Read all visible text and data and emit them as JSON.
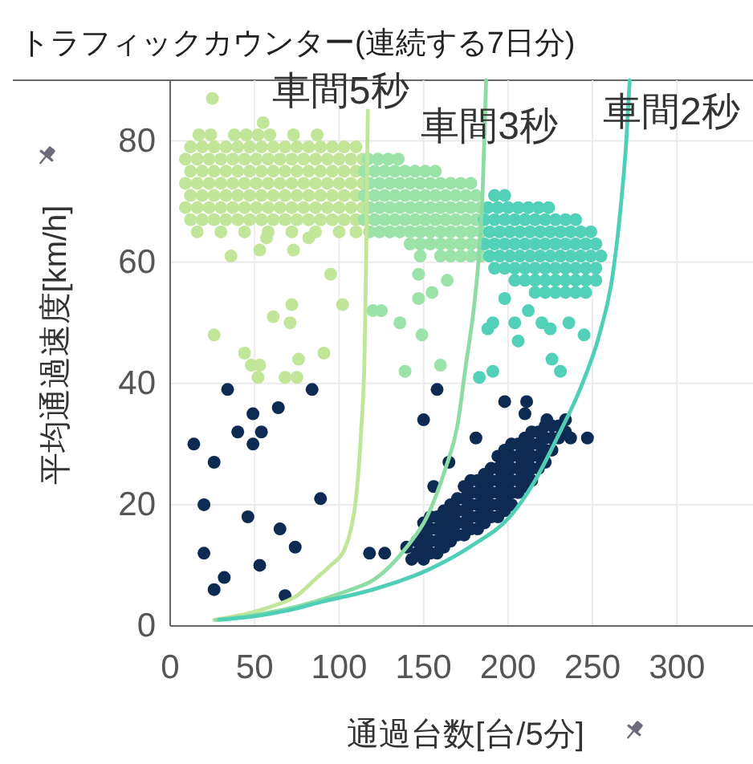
{
  "chart_data": {
    "type": "scatter",
    "title": "トラフィックカウンター(連続する7日分)",
    "xlabel": "通過台数[台/5分]",
    "ylabel": "平均通過速度[km/h]",
    "xlim": [
      0,
      345
    ],
    "ylim": [
      0,
      90
    ],
    "xticks": [
      0,
      50,
      100,
      150,
      200,
      250,
      300
    ],
    "yticks": [
      0,
      20,
      40,
      60,
      80
    ],
    "grid": true,
    "series": [
      {
        "color": "#c2e699",
        "x": [
          17,
          24,
          38,
          45,
          52,
          59,
          73,
          87,
          12,
          19,
          26,
          33,
          40,
          47,
          54,
          61,
          68,
          75,
          82,
          89,
          96,
          103,
          110,
          9,
          16,
          23,
          30,
          37,
          44,
          51,
          58,
          65,
          72,
          79,
          86,
          93,
          100,
          107,
          114,
          12,
          19,
          26,
          33,
          40,
          47,
          54,
          61,
          68,
          75,
          82,
          89,
          96,
          103,
          110,
          9,
          16,
          23,
          30,
          37,
          44,
          51,
          58,
          65,
          72,
          79,
          86,
          93,
          100,
          107,
          114,
          12,
          19,
          26,
          33,
          40,
          47,
          54,
          61,
          68,
          75,
          82,
          89,
          96,
          103,
          110,
          9,
          16,
          23,
          30,
          37,
          44,
          51,
          58,
          65,
          72,
          79,
          86,
          93,
          100,
          107,
          114,
          12,
          19,
          26,
          33,
          40,
          47,
          54,
          61,
          68,
          75,
          82,
          89,
          96,
          103,
          110,
          16,
          30,
          44,
          58,
          72,
          86,
          100,
          110,
          25,
          55,
          36,
          53,
          57,
          73,
          82,
          95,
          102,
          72,
          61,
          71,
          26,
          44,
          48,
          53,
          52,
          68,
          75,
          76,
          91
        ],
        "values": [
          81,
          81,
          81,
          81,
          81,
          81,
          81,
          81,
          79,
          79,
          79,
          79,
          79,
          79,
          79,
          79,
          79,
          79,
          79,
          79,
          79,
          79,
          79,
          77,
          77,
          77,
          77,
          77,
          77,
          77,
          77,
          77,
          77,
          77,
          77,
          77,
          77,
          77,
          77,
          75,
          75,
          75,
          75,
          75,
          75,
          75,
          75,
          75,
          75,
          75,
          75,
          75,
          75,
          75,
          73,
          73,
          73,
          73,
          73,
          73,
          73,
          73,
          73,
          73,
          73,
          73,
          73,
          73,
          73,
          73,
          71,
          71,
          71,
          71,
          71,
          71,
          71,
          71,
          71,
          71,
          71,
          71,
          71,
          71,
          71,
          69,
          69,
          69,
          69,
          69,
          69,
          69,
          69,
          69,
          69,
          69,
          69,
          69,
          69,
          69,
          69,
          67,
          67,
          67,
          67,
          67,
          67,
          67,
          67,
          67,
          67,
          67,
          67,
          67,
          67,
          67,
          65,
          65,
          65,
          65,
          65,
          65,
          65,
          65,
          87,
          83,
          61,
          62,
          64,
          62,
          64,
          58,
          53,
          53,
          51,
          50,
          48,
          45,
          43,
          43,
          41,
          41,
          41,
          44,
          45
        ]
      },
      {
        "color": "#9be3a8",
        "x": [
          117,
          123,
          129,
          135,
          115,
          121,
          127,
          133,
          139,
          145,
          151,
          157,
          118,
          124,
          130,
          136,
          142,
          148,
          154,
          160,
          166,
          172,
          178,
          115,
          121,
          127,
          133,
          139,
          145,
          151,
          157,
          163,
          169,
          175,
          181,
          118,
          124,
          130,
          136,
          142,
          148,
          154,
          160,
          166,
          172,
          178,
          184,
          115,
          121,
          127,
          133,
          139,
          145,
          151,
          157,
          163,
          169,
          175,
          181,
          118,
          124,
          130,
          136,
          142,
          148,
          154,
          160,
          166,
          172,
          178,
          184,
          142,
          148,
          154,
          160,
          166,
          172,
          178,
          184,
          160,
          166,
          172,
          178,
          184,
          148,
          147,
          164,
          147,
          155,
          120,
          125,
          136,
          149,
          139,
          160
        ],
        "values": [
          77,
          77,
          77,
          77,
          75,
          75,
          75,
          75,
          75,
          75,
          75,
          75,
          73,
          73,
          73,
          73,
          73,
          73,
          73,
          73,
          73,
          73,
          73,
          71,
          71,
          71,
          71,
          71,
          71,
          71,
          71,
          71,
          71,
          71,
          71,
          69,
          69,
          69,
          69,
          69,
          69,
          69,
          69,
          69,
          69,
          69,
          69,
          67,
          67,
          67,
          67,
          67,
          67,
          67,
          67,
          67,
          67,
          67,
          67,
          65,
          65,
          65,
          65,
          65,
          65,
          65,
          65,
          65,
          65,
          65,
          65,
          63,
          63,
          63,
          63,
          63,
          63,
          63,
          63,
          61,
          61,
          61,
          61,
          61,
          61,
          58,
          57,
          54,
          55,
          52,
          52,
          50,
          48,
          42,
          43
        ]
      },
      {
        "color": "#52d1b8",
        "x": [
          192,
          198,
          188,
          194,
          200,
          206,
          212,
          218,
          224,
          186,
          192,
          198,
          204,
          210,
          216,
          222,
          228,
          234,
          240,
          189,
          195,
          201,
          207,
          213,
          219,
          225,
          231,
          237,
          243,
          249,
          186,
          192,
          198,
          204,
          210,
          216,
          222,
          228,
          234,
          240,
          246,
          252,
          189,
          195,
          201,
          207,
          213,
          219,
          225,
          231,
          237,
          243,
          249,
          255,
          192,
          198,
          204,
          210,
          216,
          222,
          228,
          234,
          240,
          246,
          252,
          204,
          210,
          216,
          222,
          228,
          234,
          240,
          246,
          252,
          216,
          222,
          228,
          234,
          240,
          246,
          198,
          191,
          188,
          204,
          212,
          206,
          220,
          225,
          236,
          245,
          226,
          231,
          183,
          191
        ],
        "values": [
          71,
          71,
          69,
          69,
          69,
          69,
          69,
          69,
          69,
          67,
          67,
          67,
          67,
          67,
          67,
          67,
          67,
          67,
          67,
          65,
          65,
          65,
          65,
          65,
          65,
          65,
          65,
          65,
          65,
          65,
          63,
          63,
          63,
          63,
          63,
          63,
          63,
          63,
          63,
          63,
          63,
          63,
          61,
          61,
          61,
          61,
          61,
          61,
          61,
          61,
          61,
          61,
          61,
          61,
          59,
          59,
          59,
          59,
          59,
          59,
          59,
          59,
          59,
          59,
          59,
          57,
          57,
          57,
          57,
          57,
          57,
          57,
          57,
          57,
          55,
          55,
          55,
          55,
          55,
          55,
          54,
          50,
          49,
          50,
          52,
          47,
          50,
          49,
          50,
          48,
          44,
          42,
          41,
          42
        ]
      },
      {
        "color": "#0d2b52",
        "x": [
          146,
          146,
          150,
          150,
          150,
          150,
          154,
          154,
          154,
          154,
          158,
          158,
          158,
          158,
          162,
          162,
          162,
          162,
          166,
          166,
          166,
          166,
          170,
          170,
          170,
          170,
          174,
          174,
          174,
          174,
          174,
          178,
          178,
          178,
          178,
          178,
          182,
          182,
          182,
          182,
          182,
          186,
          186,
          186,
          186,
          186,
          190,
          190,
          190,
          190,
          190,
          194,
          194,
          194,
          194,
          194,
          194,
          198,
          198,
          198,
          198,
          198,
          198,
          202,
          202,
          202,
          202,
          202,
          202,
          206,
          206,
          206,
          206,
          206,
          210,
          210,
          210,
          210,
          210,
          214,
          214,
          214,
          214,
          214,
          218,
          218,
          218,
          218,
          222,
          222,
          222,
          222,
          226,
          226,
          226,
          230,
          230,
          234,
          234,
          14,
          20,
          20,
          26,
          32,
          26,
          34,
          40,
          49,
          54,
          49,
          64,
          84,
          46,
          65,
          74,
          53,
          68,
          89,
          118,
          127,
          140,
          143,
          158,
          150,
          181,
          198,
          211,
          210,
          223,
          237,
          247,
          165,
          156
        ],
        "values": [
          12,
          14,
          11,
          13,
          15,
          17,
          12,
          14,
          16,
          18,
          12,
          14,
          16,
          18,
          13,
          15,
          17,
          19,
          14,
          16,
          18,
          20,
          15,
          17,
          19,
          21,
          15,
          17,
          19,
          21,
          23,
          16,
          18,
          20,
          22,
          24,
          16,
          18,
          20,
          22,
          24,
          17,
          19,
          21,
          23,
          25,
          18,
          20,
          22,
          24,
          26,
          18,
          20,
          22,
          24,
          26,
          28,
          19,
          21,
          23,
          25,
          27,
          29,
          20,
          22,
          24,
          26,
          28,
          30,
          22,
          24,
          26,
          28,
          30,
          23,
          25,
          27,
          29,
          31,
          24,
          26,
          28,
          30,
          32,
          26,
          28,
          30,
          32,
          27,
          29,
          31,
          33,
          29,
          31,
          33,
          31,
          33,
          32,
          34,
          30,
          20,
          12,
          6,
          8,
          27,
          39,
          32,
          35,
          32,
          30,
          36,
          39,
          18,
          16,
          13,
          10,
          5,
          21,
          12,
          12,
          13,
          11,
          39,
          34,
          31,
          37,
          37,
          35,
          34,
          31,
          31,
          27,
          23
        ]
      },
      {
        "type": "line",
        "name": "車間5秒",
        "color": "#c2e699",
        "x": [
          26,
          45,
          60,
          75,
          87,
          95,
          103,
          107,
          110,
          113,
          115,
          116,
          117
        ],
        "values": [
          1,
          2,
          3.2,
          5,
          8,
          10,
          12.5,
          16,
          21,
          32,
          44,
          60,
          85
        ]
      },
      {
        "type": "line",
        "name": "車間3秒",
        "color": "#8edca5",
        "x": [
          27,
          45,
          60,
          75,
          90,
          105,
          121,
          140,
          152,
          163,
          170,
          175,
          180,
          183,
          185,
          187
        ],
        "values": [
          1,
          1.6,
          2.3,
          3.2,
          4.4,
          5.8,
          7.7,
          13,
          18,
          26,
          33,
          43,
          53,
          62,
          72,
          90
        ]
      },
      {
        "type": "line",
        "name": "車間2秒",
        "color": "#4fcfb6",
        "x": [
          29,
          50,
          70,
          90,
          120,
          153,
          180,
          201,
          216,
          229,
          244,
          254,
          262,
          267,
          270,
          272
        ],
        "values": [
          1,
          1.6,
          2.6,
          4,
          6,
          9.3,
          13.5,
          18,
          24,
          31,
          40,
          48,
          58,
          70,
          80,
          90
        ]
      }
    ]
  }
}
